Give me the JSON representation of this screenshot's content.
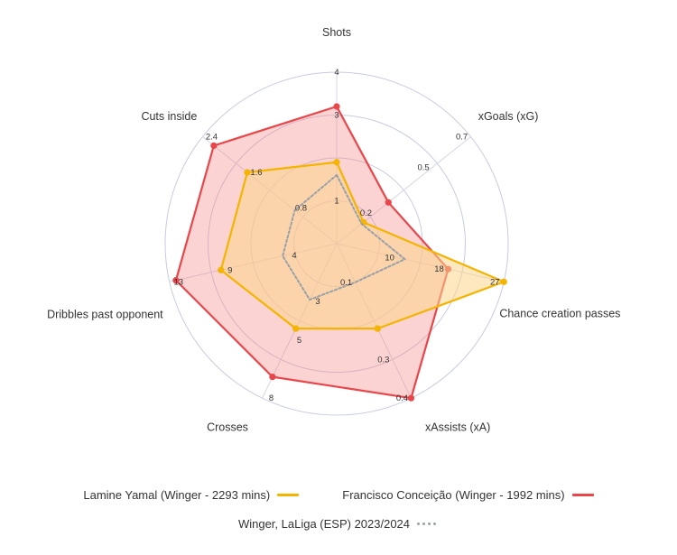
{
  "chart_data": {
    "type": "radar",
    "axes": [
      {
        "label": "Shots",
        "ticks": [
          "1",
          "3",
          "4"
        ],
        "tick_values": [
          1,
          3,
          4
        ],
        "max": 4
      },
      {
        "label": "xGoals (xG)",
        "ticks": [
          "0.2",
          "0.5",
          "0.7"
        ],
        "tick_values": [
          0.2,
          0.5,
          0.7
        ],
        "max": 0.7
      },
      {
        "label": "Chance creation passes",
        "ticks": [
          "10",
          "18",
          "27"
        ],
        "tick_values": [
          10,
          18,
          27
        ],
        "max": 27
      },
      {
        "label": "xAssists (xA)",
        "ticks": [
          "0.1",
          "0.3",
          "0.4"
        ],
        "tick_values": [
          0.1,
          0.3,
          0.4
        ],
        "max": 0.4
      },
      {
        "label": "Crosses",
        "ticks": [
          "3",
          "5",
          "8"
        ],
        "tick_values": [
          3,
          5,
          8
        ],
        "max": 8
      },
      {
        "label": "Dribbles past opponent",
        "ticks": [
          "4",
          "9",
          "13"
        ],
        "tick_values": [
          4,
          9,
          13
        ],
        "max": 13
      },
      {
        "label": "Cuts inside",
        "ticks": [
          "0.8",
          "1.6",
          "2.4"
        ],
        "tick_values": [
          0.8,
          1.6,
          2.4
        ],
        "max": 2.4
      }
    ],
    "series": [
      {
        "name": "Francisco Conceição (Winger - 1992 mins)",
        "values": [
          3.2,
          0.27,
          18,
          0.4,
          6.9,
          12.5,
          2.2
        ],
        "color": "#e8464a",
        "fill": "rgba(245,140,140,0.38)",
        "style": "solid"
      },
      {
        "name": "Lamine Yamal (Winger - 2293 mins)",
        "values": [
          1.9,
          0.14,
          27,
          0.22,
          4.4,
          9,
          1.6
        ],
        "color": "#f4b400",
        "fill": "rgba(251,213,140,0.55)",
        "style": "solid"
      },
      {
        "name": "Winger, LaLiga (ESP) 2023/2024",
        "values": [
          1.6,
          0.13,
          11,
          0.1,
          2.9,
          4.2,
          0.75
        ],
        "color": "#9aa0a6",
        "fill": "none",
        "style": "dotted"
      }
    ],
    "grid_rings": 4,
    "legend_position": "bottom"
  }
}
